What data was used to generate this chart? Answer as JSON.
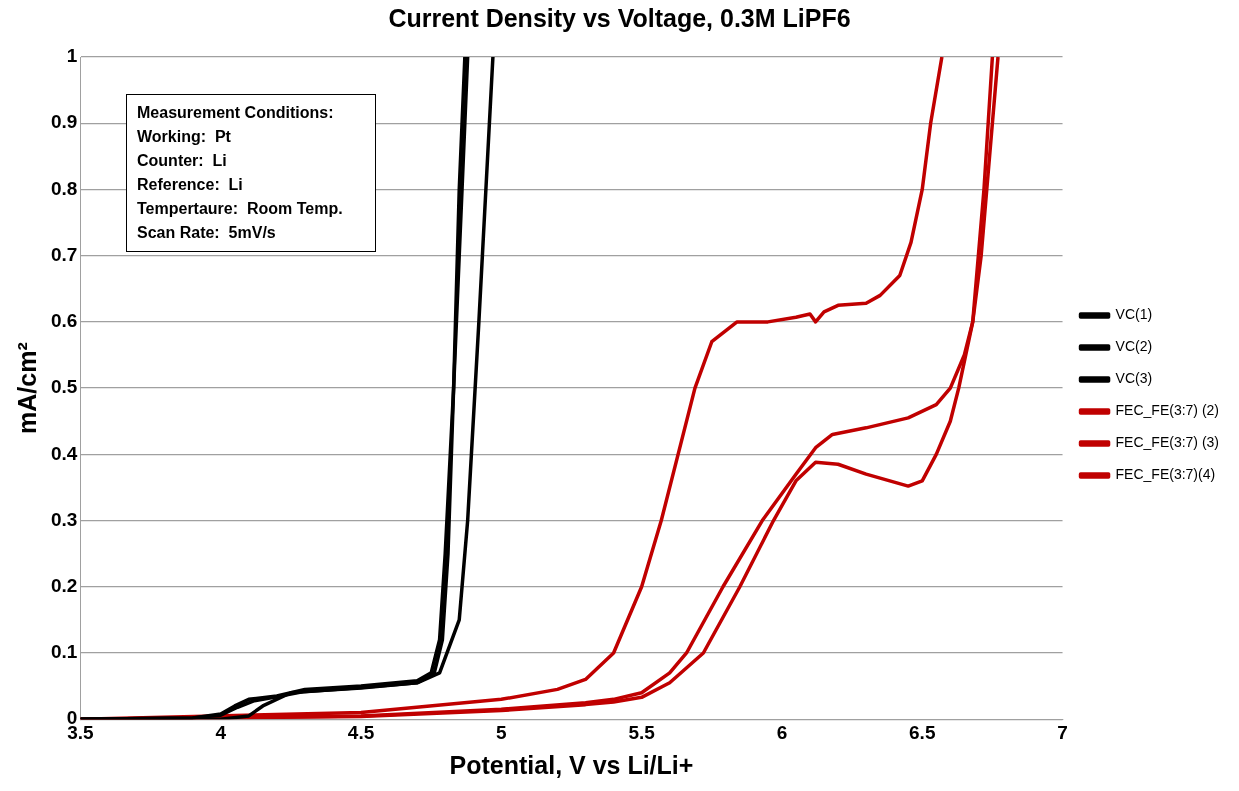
{
  "chart_data": {
    "type": "line",
    "title": "Current Density vs Voltage, 0.3M LiPF6",
    "xlabel": "Potential, V vs Li/Li+",
    "ylabel": "mA/cm²",
    "xlim": [
      3.5,
      7
    ],
    "xticks": [
      3.5,
      4,
      4.5,
      5,
      5.5,
      6,
      6.5,
      7
    ],
    "ylim": [
      0,
      1
    ],
    "yticks": [
      0,
      0.1,
      0.2,
      0.3,
      0.4,
      0.5,
      0.6,
      0.7,
      0.8,
      0.9,
      1
    ],
    "grid": "y",
    "legend": "right",
    "marker": "none",
    "line_style": "solid",
    "annotations": [
      "Measurement Conditions:",
      "Working:  Pt",
      "Counter:  Li",
      "Reference:  Li",
      "Tempertaure:  Room Temp.",
      "Scan Rate:  5mV/s"
    ],
    "series": [
      {
        "name": "VC(1)",
        "color": "#000000",
        "x": [
          3.5,
          3.9,
          4.0,
          4.05,
          4.1,
          4.2,
          4.3,
          4.5,
          4.7,
          4.75,
          4.78,
          4.8,
          4.83,
          4.86,
          4.88
        ],
        "values": [
          0,
          0.002,
          0.008,
          0.02,
          0.03,
          0.035,
          0.045,
          0.05,
          0.058,
          0.07,
          0.12,
          0.25,
          0.5,
          0.8,
          1
        ]
      },
      {
        "name": "VC(2)",
        "color": "#000000",
        "x": [
          3.5,
          3.9,
          4.0,
          4.06,
          4.12,
          4.2,
          4.3,
          4.5,
          4.7,
          4.76,
          4.79,
          4.81,
          4.83,
          4.85,
          4.87
        ],
        "values": [
          0,
          0.002,
          0.006,
          0.018,
          0.028,
          0.034,
          0.042,
          0.047,
          0.055,
          0.068,
          0.12,
          0.25,
          0.5,
          0.8,
          1
        ]
      },
      {
        "name": "VC(3)",
        "color": "#000000",
        "x": [
          3.5,
          4.0,
          4.1,
          4.15,
          4.25,
          4.5,
          4.7,
          4.78,
          4.85,
          4.88,
          4.92,
          4.97
        ],
        "values": [
          0,
          0,
          0.005,
          0.02,
          0.04,
          0.048,
          0.055,
          0.07,
          0.15,
          0.3,
          0.6,
          1
        ]
      },
      {
        "name": "FEC_FE(3:7) (2)",
        "color": "#c00000",
        "x": [
          3.5,
          4.5,
          5.0,
          5.2,
          5.3,
          5.35,
          5.4,
          5.5,
          5.57,
          5.63,
          5.69,
          5.75,
          5.84,
          5.95,
          6.05,
          6.1,
          6.12,
          6.15,
          6.2,
          6.3,
          6.35,
          6.42,
          6.46,
          6.5,
          6.53,
          6.57
        ],
        "values": [
          0,
          0.01,
          0.03,
          0.045,
          0.06,
          0.08,
          0.1,
          0.2,
          0.3,
          0.4,
          0.5,
          0.57,
          0.6,
          0.6,
          0.607,
          0.612,
          0.6,
          0.615,
          0.625,
          0.628,
          0.64,
          0.67,
          0.72,
          0.8,
          0.9,
          1
        ]
      },
      {
        "name": "FEC_FE(3:7) (3)",
        "color": "#c00000",
        "x": [
          3.5,
          4.5,
          5.0,
          5.3,
          5.4,
          5.5,
          5.6,
          5.66,
          5.79,
          5.93,
          6.05,
          6.12,
          6.18,
          6.3,
          6.45,
          6.55,
          6.6,
          6.65,
          6.68,
          6.71,
          6.74,
          6.77
        ],
        "values": [
          0,
          0.005,
          0.015,
          0.025,
          0.03,
          0.04,
          0.07,
          0.1,
          0.2,
          0.3,
          0.37,
          0.41,
          0.43,
          0.44,
          0.455,
          0.475,
          0.5,
          0.55,
          0.6,
          0.7,
          0.85,
          1
        ]
      },
      {
        "name": "FEC_FE(3:7)(4)",
        "color": "#c00000",
        "x": [
          3.5,
          4.5,
          5.0,
          5.3,
          5.4,
          5.5,
          5.6,
          5.72,
          5.85,
          5.97,
          6.05,
          6.12,
          6.2,
          6.3,
          6.45,
          6.5,
          6.55,
          6.6,
          6.63,
          6.68,
          6.72,
          6.75
        ],
        "values": [
          0,
          0.004,
          0.013,
          0.022,
          0.026,
          0.033,
          0.055,
          0.1,
          0.2,
          0.3,
          0.36,
          0.388,
          0.385,
          0.37,
          0.352,
          0.36,
          0.4,
          0.45,
          0.5,
          0.6,
          0.8,
          1
        ]
      }
    ]
  }
}
